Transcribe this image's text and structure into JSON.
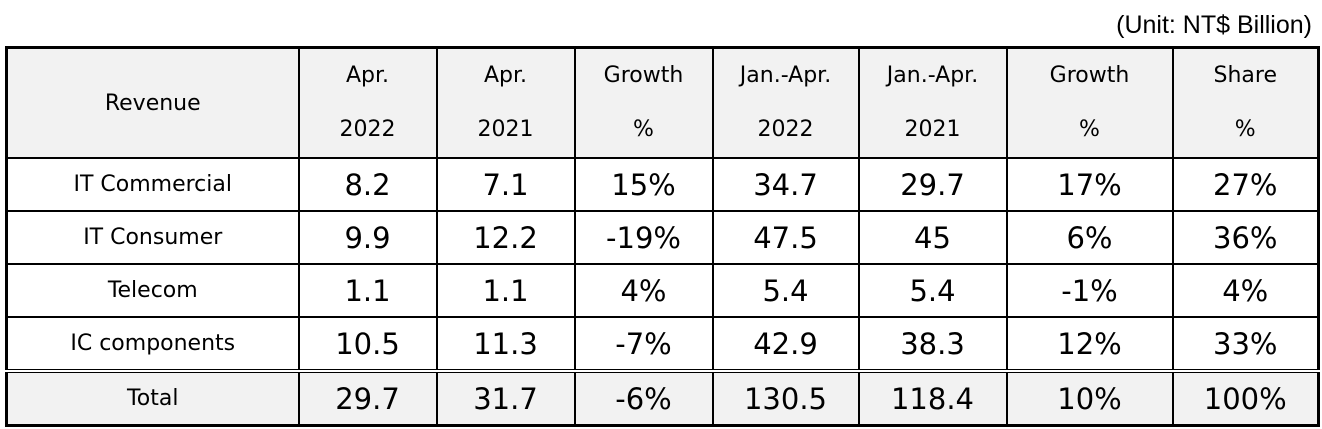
{
  "unit_note": "(Unit: NT$ Billion)",
  "header": {
    "revenue": "Revenue",
    "columns": [
      {
        "line1": "Apr.",
        "line2": "2022"
      },
      {
        "line1": "Apr.",
        "line2": "2021"
      },
      {
        "line1": "Growth",
        "line2": "%"
      },
      {
        "line1": "Jan.-Apr.",
        "line2": "2022"
      },
      {
        "line1": "Jan.-Apr.",
        "line2": "2021"
      },
      {
        "line1": "Growth",
        "line2": "%"
      },
      {
        "line1": "Share",
        "line2": "%"
      }
    ]
  },
  "rows": [
    {
      "label": "IT Commercial",
      "cells": [
        "8.2",
        "7.1",
        "15%",
        "34.7",
        "29.7",
        "17%",
        "27%"
      ]
    },
    {
      "label": "IT Consumer",
      "cells": [
        "9.9",
        "12.2",
        "-19%",
        "47.5",
        "45",
        "6%",
        "36%"
      ]
    },
    {
      "label": "Telecom",
      "cells": [
        "1.1",
        "1.1",
        "4%",
        "5.4",
        "5.4",
        "-1%",
        "4%"
      ]
    },
    {
      "label": "IC components",
      "cells": [
        "10.5",
        "11.3",
        "-7%",
        "42.9",
        "38.3",
        "12%",
        "33%"
      ]
    }
  ],
  "total": {
    "label": "Total",
    "cells": [
      "29.7",
      "31.7",
      "-6%",
      "130.5",
      "118.4",
      "10%",
      "100%"
    ]
  }
}
